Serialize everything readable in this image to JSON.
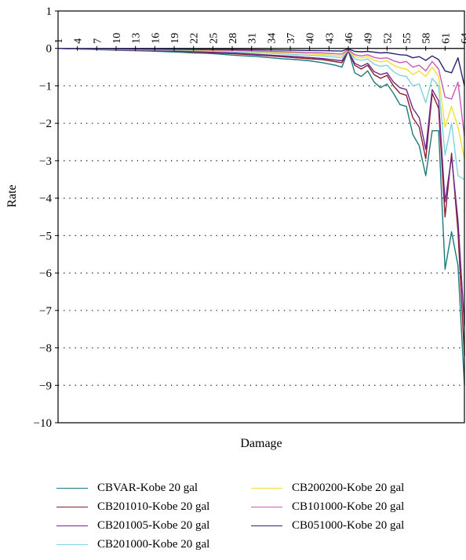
{
  "chart_data": {
    "type": "line",
    "title": "",
    "xlabel": "Damage",
    "ylabel": "Rate",
    "ylim": [
      -10,
      1
    ],
    "yticks": [
      "1",
      "0",
      "−1",
      "−2",
      "−3",
      "−4",
      "−5",
      "−6",
      "−7",
      "−8",
      "−9",
      "−10"
    ],
    "x_tick_labels": [
      "1",
      "4",
      "7",
      "10",
      "13",
      "16",
      "19",
      "22",
      "25",
      "28",
      "31",
      "34",
      "37",
      "40",
      "43",
      "46",
      "49",
      "52",
      "55",
      "58",
      "61",
      "64"
    ],
    "grid": "horizontal dotted",
    "legend_position": "bottom",
    "series": [
      {
        "name": "CBVAR-Kobe 20 gal",
        "color": "#1a7a7e",
        "points": [
          [
            1,
            0
          ],
          [
            5,
            -0.02
          ],
          [
            10,
            -0.05
          ],
          [
            15,
            -0.07
          ],
          [
            20,
            -0.1
          ],
          [
            22,
            -0.12
          ],
          [
            24,
            -0.13
          ],
          [
            26,
            -0.15
          ],
          [
            28,
            -0.18
          ],
          [
            30,
            -0.2
          ],
          [
            32,
            -0.22
          ],
          [
            34,
            -0.25
          ],
          [
            36,
            -0.28
          ],
          [
            38,
            -0.3
          ],
          [
            40,
            -0.33
          ],
          [
            42,
            -0.38
          ],
          [
            44,
            -0.45
          ],
          [
            45,
            -0.5
          ],
          [
            46,
            -0.05
          ],
          [
            47,
            -0.65
          ],
          [
            48,
            -0.75
          ],
          [
            49,
            -0.6
          ],
          [
            50,
            -0.9
          ],
          [
            51,
            -1.05
          ],
          [
            52,
            -0.95
          ],
          [
            53,
            -1.2
          ],
          [
            54,
            -1.5
          ],
          [
            55,
            -1.55
          ],
          [
            56,
            -2.3
          ],
          [
            57,
            -2.6
          ],
          [
            58,
            -3.4
          ],
          [
            59,
            -2.2
          ],
          [
            60,
            -2.2
          ],
          [
            61,
            -5.9
          ],
          [
            62,
            -4.9
          ],
          [
            63,
            -5.8
          ],
          [
            64,
            -9.0
          ]
        ]
      },
      {
        "name": "CB201010-Kobe 20 gal",
        "color": "#8b1c2e",
        "points": [
          [
            1,
            0
          ],
          [
            10,
            -0.04
          ],
          [
            20,
            -0.08
          ],
          [
            28,
            -0.14
          ],
          [
            34,
            -0.2
          ],
          [
            38,
            -0.25
          ],
          [
            42,
            -0.3
          ],
          [
            45,
            -0.38
          ],
          [
            46,
            -0.08
          ],
          [
            47,
            -0.45
          ],
          [
            48,
            -0.55
          ],
          [
            49,
            -0.45
          ],
          [
            50,
            -0.7
          ],
          [
            51,
            -0.8
          ],
          [
            52,
            -0.72
          ],
          [
            53,
            -1.0
          ],
          [
            54,
            -1.2
          ],
          [
            55,
            -1.25
          ],
          [
            56,
            -1.85
          ],
          [
            57,
            -2.1
          ],
          [
            58,
            -2.95
          ],
          [
            59,
            -1.2
          ],
          [
            60,
            -1.6
          ],
          [
            61,
            -4.5
          ],
          [
            62,
            -2.8
          ],
          [
            63,
            -4.9
          ],
          [
            64,
            -8.2
          ]
        ]
      },
      {
        "name": "CB201005-Kobe 20 gal",
        "color": "#6e2a8a",
        "points": [
          [
            1,
            0
          ],
          [
            10,
            -0.04
          ],
          [
            20,
            -0.07
          ],
          [
            28,
            -0.12
          ],
          [
            34,
            -0.18
          ],
          [
            38,
            -0.22
          ],
          [
            42,
            -0.27
          ],
          [
            45,
            -0.33
          ],
          [
            46,
            -0.07
          ],
          [
            47,
            -0.4
          ],
          [
            48,
            -0.48
          ],
          [
            49,
            -0.4
          ],
          [
            50,
            -0.62
          ],
          [
            51,
            -0.7
          ],
          [
            52,
            -0.65
          ],
          [
            53,
            -0.9
          ],
          [
            54,
            -1.05
          ],
          [
            55,
            -1.1
          ],
          [
            56,
            -1.6
          ],
          [
            57,
            -1.85
          ],
          [
            58,
            -2.7
          ],
          [
            59,
            -1.1
          ],
          [
            60,
            -1.4
          ],
          [
            61,
            -4.1
          ],
          [
            62,
            -2.9
          ],
          [
            63,
            -4.6
          ],
          [
            64,
            -7.4
          ]
        ]
      },
      {
        "name": "CB201000-Kobe 20 gal",
        "color": "#7fd3de",
        "points": [
          [
            1,
            0
          ],
          [
            10,
            -0.03
          ],
          [
            20,
            -0.05
          ],
          [
            28,
            -0.09
          ],
          [
            34,
            -0.13
          ],
          [
            38,
            -0.17
          ],
          [
            42,
            -0.2
          ],
          [
            45,
            -0.25
          ],
          [
            46,
            -0.05
          ],
          [
            47,
            -0.28
          ],
          [
            48,
            -0.32
          ],
          [
            49,
            -0.28
          ],
          [
            50,
            -0.42
          ],
          [
            51,
            -0.48
          ],
          [
            52,
            -0.45
          ],
          [
            53,
            -0.62
          ],
          [
            54,
            -0.72
          ],
          [
            55,
            -0.75
          ],
          [
            56,
            -1.0
          ],
          [
            57,
            -0.95
          ],
          [
            58,
            -1.45
          ],
          [
            59,
            -0.8
          ],
          [
            60,
            -1.0
          ],
          [
            61,
            -2.85
          ],
          [
            62,
            -2.0
          ],
          [
            63,
            -3.4
          ],
          [
            64,
            -3.5
          ]
        ]
      },
      {
        "name": "CB200200-Kobe 20 gal",
        "color": "#f2e030",
        "points": [
          [
            1,
            0
          ],
          [
            10,
            -0.02
          ],
          [
            20,
            -0.04
          ],
          [
            28,
            -0.07
          ],
          [
            34,
            -0.1
          ],
          [
            38,
            -0.13
          ],
          [
            42,
            -0.16
          ],
          [
            45,
            -0.2
          ],
          [
            46,
            -0.04
          ],
          [
            47,
            -0.22
          ],
          [
            48,
            -0.26
          ],
          [
            49,
            -0.22
          ],
          [
            50,
            -0.32
          ],
          [
            51,
            -0.36
          ],
          [
            52,
            -0.33
          ],
          [
            53,
            -0.45
          ],
          [
            54,
            -0.52
          ],
          [
            55,
            -0.55
          ],
          [
            56,
            -0.7
          ],
          [
            57,
            -0.6
          ],
          [
            58,
            -0.75
          ],
          [
            59,
            -0.5
          ],
          [
            60,
            -0.75
          ],
          [
            61,
            -2.1
          ],
          [
            62,
            -1.55
          ],
          [
            63,
            -2.1
          ],
          [
            64,
            -2.95
          ]
        ]
      },
      {
        "name": "CB101000-Kobe 20 gal",
        "color": "#c85ab8",
        "points": [
          [
            1,
            0
          ],
          [
            10,
            -0.02
          ],
          [
            20,
            -0.03
          ],
          [
            28,
            -0.05
          ],
          [
            34,
            -0.08
          ],
          [
            38,
            -0.1
          ],
          [
            42,
            -0.12
          ],
          [
            45,
            -0.15
          ],
          [
            46,
            -0.03
          ],
          [
            47,
            -0.17
          ],
          [
            48,
            -0.2
          ],
          [
            49,
            -0.17
          ],
          [
            50,
            -0.24
          ],
          [
            51,
            -0.27
          ],
          [
            52,
            -0.25
          ],
          [
            53,
            -0.33
          ],
          [
            54,
            -0.38
          ],
          [
            55,
            -0.35
          ],
          [
            56,
            -0.5
          ],
          [
            57,
            -0.45
          ],
          [
            58,
            -0.6
          ],
          [
            59,
            -0.35
          ],
          [
            60,
            -0.55
          ],
          [
            61,
            -1.3
          ],
          [
            62,
            -1.35
          ],
          [
            63,
            -0.9
          ],
          [
            64,
            -2.35
          ]
        ]
      },
      {
        "name": "CB051000-Kobe 20 gal",
        "color": "#2a2670",
        "points": [
          [
            1,
            0
          ],
          [
            10,
            -0.01
          ],
          [
            20,
            -0.02
          ],
          [
            28,
            -0.03
          ],
          [
            34,
            -0.04
          ],
          [
            38,
            -0.05
          ],
          [
            42,
            -0.06
          ],
          [
            45,
            -0.07
          ],
          [
            46,
            -0.01
          ],
          [
            47,
            -0.08
          ],
          [
            48,
            -0.09
          ],
          [
            49,
            -0.08
          ],
          [
            50,
            -0.1
          ],
          [
            51,
            -0.12
          ],
          [
            52,
            -0.11
          ],
          [
            53,
            -0.14
          ],
          [
            54,
            -0.17
          ],
          [
            55,
            -0.18
          ],
          [
            56,
            -0.25
          ],
          [
            57,
            -0.22
          ],
          [
            58,
            -0.32
          ],
          [
            59,
            -0.2
          ],
          [
            60,
            -0.3
          ],
          [
            61,
            -0.6
          ],
          [
            62,
            -0.65
          ],
          [
            63,
            -0.25
          ],
          [
            64,
            -1.0
          ]
        ]
      }
    ]
  }
}
